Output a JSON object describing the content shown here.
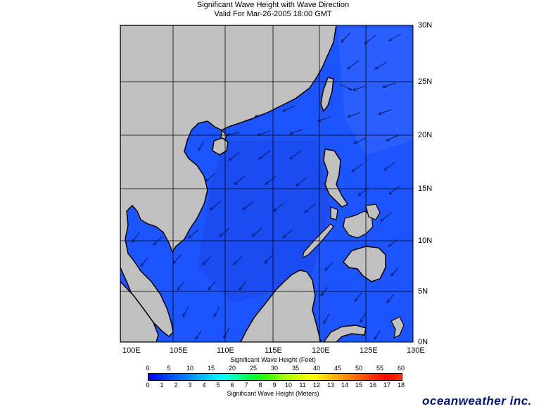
{
  "title": {
    "line1": "Significant Wave Height with Wave Direction",
    "line2": "Valid For Mar-26-2005 18:00 GMT"
  },
  "lat_labels": [
    "30N",
    "25N",
    "20N",
    "15N",
    "10N",
    "5N",
    "0N"
  ],
  "lon_labels": [
    "100E",
    "105E",
    "110E",
    "115E",
    "120E",
    "125E",
    "130E"
  ],
  "feet_scale": {
    "title": "Significant Wave Height (Feet)",
    "ticks": [
      "0",
      "5",
      "10",
      "15",
      "20",
      "25",
      "30",
      "35",
      "40",
      "45",
      "50",
      "55",
      "60"
    ]
  },
  "meter_scale": {
    "title": "Significant Wave Height (Meters)",
    "ticks": [
      "0",
      "1",
      "2",
      "3",
      "4",
      "5",
      "6",
      "7",
      "8",
      "9",
      "10",
      "11",
      "12",
      "13",
      "14",
      "15",
      "16",
      "17",
      "18"
    ]
  },
  "colors": {
    "land": "#c0c0c0",
    "sea_low": "#0a37e6",
    "sea_mid": "#1c55ff",
    "coast_shadow": "#000000",
    "colorbar": [
      "#0000ff",
      "#0033ff",
      "#0066ff",
      "#0099ff",
      "#00ccff",
      "#00ffff",
      "#00ff99",
      "#00ff33",
      "#33ff00",
      "#99ff00",
      "#ccff00",
      "#ffff00",
      "#ffcc00",
      "#ff9900",
      "#ff6600",
      "#ff3300",
      "#ff0000",
      "#ff3300"
    ]
  },
  "brand": "oceanweather inc."
}
